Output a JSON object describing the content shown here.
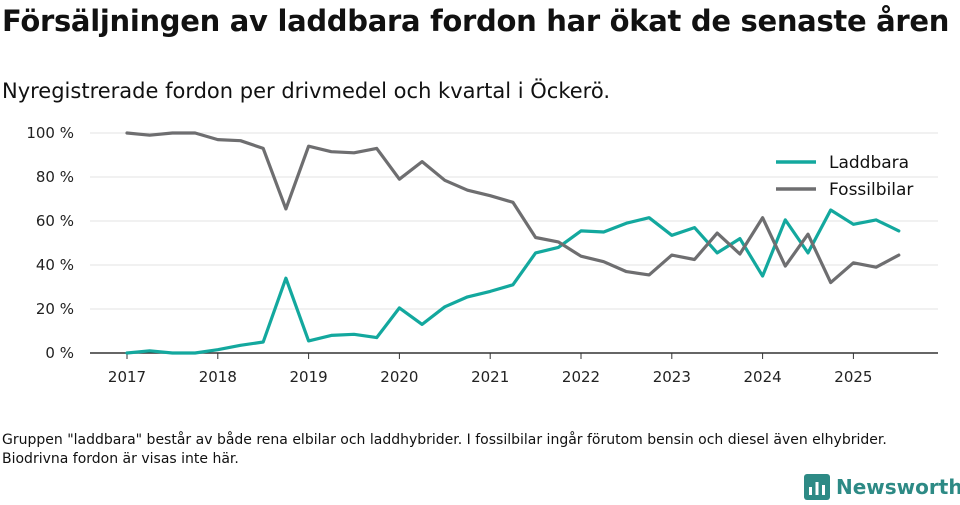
{
  "title": "Försäljningen av laddbara fordon har ökat de senaste åren",
  "subtitle": "Nyregistrerade fordon per drivmedel och kvartal i Öckerö.",
  "footnote": "Gruppen \"laddbara\" består av både rena elbilar och laddhybrider. I fossilbilar ingår förutom bensin och diesel även elhybrider. Biodrivna fordon är visas inte här.",
  "brand": "Newsworthy",
  "colors": {
    "laddbara": "#13a89e",
    "fossilbilar": "#6e6e70",
    "grid": "#e3e3e3",
    "axis": "#333333",
    "brand": "#2d8a85"
  },
  "chart_data": {
    "type": "line",
    "title": "Försäljningen av laddbara fordon har ökat de senaste åren",
    "xlabel": "",
    "ylabel": "",
    "ylim": [
      0,
      100
    ],
    "y_ticks": [
      "0 %",
      "20 %",
      "40 %",
      "60 %",
      "80 %",
      "100 %"
    ],
    "x_range": [
      2017,
      2025.75
    ],
    "x_ticks": [
      "2017",
      "2018",
      "2019",
      "2020",
      "2021",
      "2022",
      "2023",
      "2024",
      "2025"
    ],
    "legend_position": "top-right",
    "x": [
      2017.0,
      2017.25,
      2017.5,
      2017.75,
      2018.0,
      2018.25,
      2018.5,
      2018.75,
      2019.0,
      2019.25,
      2019.5,
      2019.75,
      2020.0,
      2020.25,
      2020.5,
      2020.75,
      2021.0,
      2021.25,
      2021.5,
      2021.75,
      2022.0,
      2022.25,
      2022.5,
      2022.75,
      2023.0,
      2023.25,
      2023.5,
      2023.75,
      2024.0,
      2024.25,
      2024.5,
      2024.75,
      2025.0,
      2025.25,
      2025.5
    ],
    "series": [
      {
        "name": "Laddbara",
        "color": "#13a89e",
        "values": [
          0,
          1,
          0,
          0,
          1.5,
          3.5,
          5,
          34,
          5.5,
          8,
          8.5,
          7,
          20.5,
          13,
          21,
          25.5,
          28,
          31,
          45.5,
          48,
          55.5,
          55,
          59,
          61.5,
          53.5,
          57,
          45.5,
          52,
          35,
          60.5,
          45.5,
          65,
          58.5,
          60.5,
          55.5
        ]
      },
      {
        "name": "Fossilbilar",
        "color": "#6e6e70",
        "values": [
          100,
          99,
          100,
          100,
          97,
          96.5,
          93,
          65.5,
          94,
          91.5,
          91,
          93,
          79,
          87,
          78.5,
          74,
          71.5,
          68.5,
          52.5,
          50.5,
          44,
          41.5,
          37,
          35.5,
          44.5,
          42.5,
          54.5,
          45,
          61.5,
          39.5,
          54,
          32,
          41,
          39,
          44.5
        ]
      }
    ]
  }
}
